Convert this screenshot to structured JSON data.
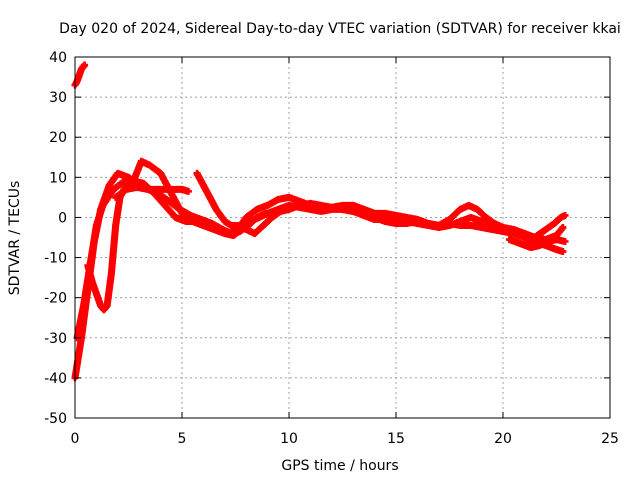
{
  "chart_data": {
    "type": "scatter",
    "title": "Day 020 of 2024, Sidereal Day-to-day VTEC variation (SDTVAR) for receiver kkai",
    "xlabel": "GPS time / hours",
    "ylabel": "SDTVAR / TECUs",
    "xlim": [
      0,
      25
    ],
    "ylim": [
      -50,
      40
    ],
    "xticks": [
      0,
      5,
      10,
      15,
      20,
      25
    ],
    "yticks": [
      -50,
      -40,
      -30,
      -20,
      -10,
      0,
      10,
      20,
      30,
      40
    ],
    "grid": true,
    "marker": "plus",
    "color": "#ff0000",
    "series": [
      {
        "name": "track-1",
        "points": [
          [
            0.0,
            33
          ],
          [
            0.1,
            34
          ],
          [
            0.2,
            35.5
          ],
          [
            0.3,
            37
          ],
          [
            0.45,
            38
          ]
        ]
      },
      {
        "name": "track-2",
        "points": [
          [
            0.0,
            -40
          ],
          [
            0.3,
            -30
          ],
          [
            0.6,
            -18
          ],
          [
            0.9,
            -6
          ],
          [
            1.2,
            2
          ],
          [
            1.6,
            8
          ],
          [
            2.0,
            11
          ],
          [
            2.5,
            10
          ],
          [
            3.0,
            8
          ],
          [
            3.5,
            7
          ],
          [
            4.0,
            7
          ],
          [
            4.5,
            7
          ],
          [
            5.0,
            7
          ],
          [
            5.3,
            6.5
          ]
        ]
      },
      {
        "name": "track-3",
        "points": [
          [
            0.1,
            -30
          ],
          [
            0.4,
            -22
          ],
          [
            0.7,
            -12
          ],
          [
            1.0,
            -2
          ],
          [
            1.3,
            3
          ],
          [
            1.8,
            7
          ],
          [
            2.3,
            9
          ],
          [
            2.8,
            9
          ],
          [
            3.2,
            8.5
          ],
          [
            3.7,
            6
          ],
          [
            4.2,
            3
          ],
          [
            4.7,
            0
          ],
          [
            5.2,
            -1
          ],
          [
            5.7,
            -1
          ],
          [
            6.2,
            -2
          ],
          [
            6.7,
            -3
          ],
          [
            7.2,
            -4
          ],
          [
            7.6,
            -3
          ],
          [
            8.0,
            0
          ],
          [
            8.5,
            2
          ],
          [
            9.0,
            3
          ],
          [
            9.5,
            4.5
          ],
          [
            10.0,
            5
          ],
          [
            10.5,
            4
          ],
          [
            11.0,
            3
          ],
          [
            11.5,
            2.5
          ],
          [
            12.0,
            2.5
          ],
          [
            12.5,
            3
          ],
          [
            13.0,
            3
          ],
          [
            13.5,
            2
          ],
          [
            14.0,
            1
          ],
          [
            14.5,
            1
          ],
          [
            15.0,
            0.5
          ],
          [
            15.5,
            0
          ],
          [
            16.0,
            -0.5
          ],
          [
            16.5,
            -1.5
          ],
          [
            17.0,
            -2
          ],
          [
            17.5,
            -0.5
          ],
          [
            18.0,
            2
          ],
          [
            18.4,
            3
          ],
          [
            18.8,
            2
          ],
          [
            19.2,
            0
          ],
          [
            19.6,
            -1.5
          ],
          [
            20.0,
            -2.5
          ],
          [
            20.5,
            -3
          ],
          [
            21.0,
            -4
          ],
          [
            21.5,
            -6
          ],
          [
            22.0,
            -7
          ],
          [
            22.5,
            -8
          ],
          [
            22.8,
            -8.5
          ]
        ]
      },
      {
        "name": "track-4",
        "points": [
          [
            0.6,
            -12
          ],
          [
            0.8,
            -16
          ],
          [
            1.0,
            -19
          ],
          [
            1.2,
            -22
          ],
          [
            1.35,
            -23
          ],
          [
            1.5,
            -22
          ],
          [
            1.7,
            -14
          ],
          [
            1.9,
            -2
          ],
          [
            2.1,
            5
          ],
          [
            2.4,
            8
          ],
          [
            2.8,
            10
          ],
          [
            3.1,
            14
          ],
          [
            3.5,
            13
          ],
          [
            4.0,
            11
          ],
          [
            4.5,
            6
          ],
          [
            5.0,
            1
          ],
          [
            5.5,
            -1
          ],
          [
            6.0,
            -2
          ],
          [
            6.5,
            -3
          ],
          [
            7.0,
            -4
          ],
          [
            7.4,
            -4.5
          ],
          [
            7.8,
            -3
          ],
          [
            8.2,
            -1
          ],
          [
            8.6,
            0
          ],
          [
            9.0,
            1
          ],
          [
            9.5,
            2
          ],
          [
            10.0,
            3
          ],
          [
            10.5,
            2.5
          ],
          [
            11.0,
            2
          ],
          [
            11.5,
            1.5
          ],
          [
            12.0,
            2
          ],
          [
            12.5,
            2
          ],
          [
            13.0,
            1.5
          ],
          [
            13.5,
            0.5
          ],
          [
            14.0,
            -0.5
          ],
          [
            14.5,
            -0.5
          ],
          [
            15.0,
            -0.5
          ],
          [
            15.5,
            -1
          ],
          [
            16.0,
            -1.5
          ],
          [
            16.5,
            -2
          ],
          [
            17.0,
            -2.5
          ],
          [
            17.5,
            -2
          ],
          [
            18.0,
            -1
          ],
          [
            18.5,
            0
          ],
          [
            19.0,
            -1
          ],
          [
            19.5,
            -2
          ],
          [
            20.0,
            -3
          ],
          [
            20.5,
            -3.5
          ],
          [
            21.0,
            -4
          ],
          [
            21.5,
            -5
          ],
          [
            22.0,
            -5.5
          ],
          [
            22.5,
            -4.5
          ],
          [
            22.8,
            -2.5
          ]
        ]
      },
      {
        "name": "track-5",
        "points": [
          [
            5.7,
            11
          ],
          [
            6.0,
            8
          ],
          [
            6.3,
            5
          ],
          [
            6.6,
            2
          ],
          [
            7.0,
            -1
          ],
          [
            7.3,
            -2
          ],
          [
            7.6,
            -2
          ],
          [
            8.0,
            -3
          ],
          [
            8.4,
            -4
          ],
          [
            8.8,
            -2
          ],
          [
            9.2,
            0
          ],
          [
            9.6,
            1.5
          ],
          [
            10.0,
            2
          ],
          [
            10.5,
            3
          ],
          [
            11.0,
            3.5
          ],
          [
            11.5,
            3
          ],
          [
            12.0,
            2.5
          ],
          [
            12.5,
            2
          ],
          [
            13.0,
            1.5
          ],
          [
            13.5,
            1
          ],
          [
            14.0,
            0
          ],
          [
            14.5,
            -1
          ],
          [
            15.0,
            -1.5
          ],
          [
            15.5,
            -1.5
          ],
          [
            16.0,
            -1
          ],
          [
            16.5,
            -1.5
          ],
          [
            17.0,
            -2
          ],
          [
            17.5,
            -1.5
          ],
          [
            18.0,
            -2
          ],
          [
            18.5,
            -2
          ],
          [
            19.0,
            -2.5
          ],
          [
            19.5,
            -3
          ],
          [
            20.0,
            -3.5
          ],
          [
            20.5,
            -4
          ],
          [
            21.0,
            -5
          ],
          [
            21.3,
            -6
          ],
          [
            21.6,
            -4.5
          ],
          [
            22.0,
            -3
          ],
          [
            22.4,
            -1.5
          ],
          [
            22.7,
            0
          ],
          [
            22.9,
            0.5
          ]
        ]
      },
      {
        "name": "track-6",
        "points": [
          [
            20.3,
            -5.5
          ],
          [
            20.8,
            -6.5
          ],
          [
            21.3,
            -7.5
          ],
          [
            21.7,
            -7
          ],
          [
            22.1,
            -6
          ],
          [
            22.5,
            -5.5
          ],
          [
            22.9,
            -6
          ]
        ]
      },
      {
        "name": "track-7",
        "points": [
          [
            1.9,
            5
          ],
          [
            2.4,
            7
          ],
          [
            2.9,
            7.5
          ],
          [
            3.4,
            7
          ],
          [
            3.9,
            6
          ],
          [
            4.4,
            4
          ],
          [
            4.9,
            2
          ],
          [
            5.4,
            0.5
          ],
          [
            5.9,
            -0.5
          ],
          [
            6.4,
            -1.5
          ],
          [
            6.9,
            -3
          ],
          [
            7.3,
            -4
          ],
          [
            7.7,
            -3.5
          ],
          [
            8.1,
            -2
          ],
          [
            8.5,
            0
          ],
          [
            8.9,
            1
          ]
        ]
      }
    ]
  }
}
